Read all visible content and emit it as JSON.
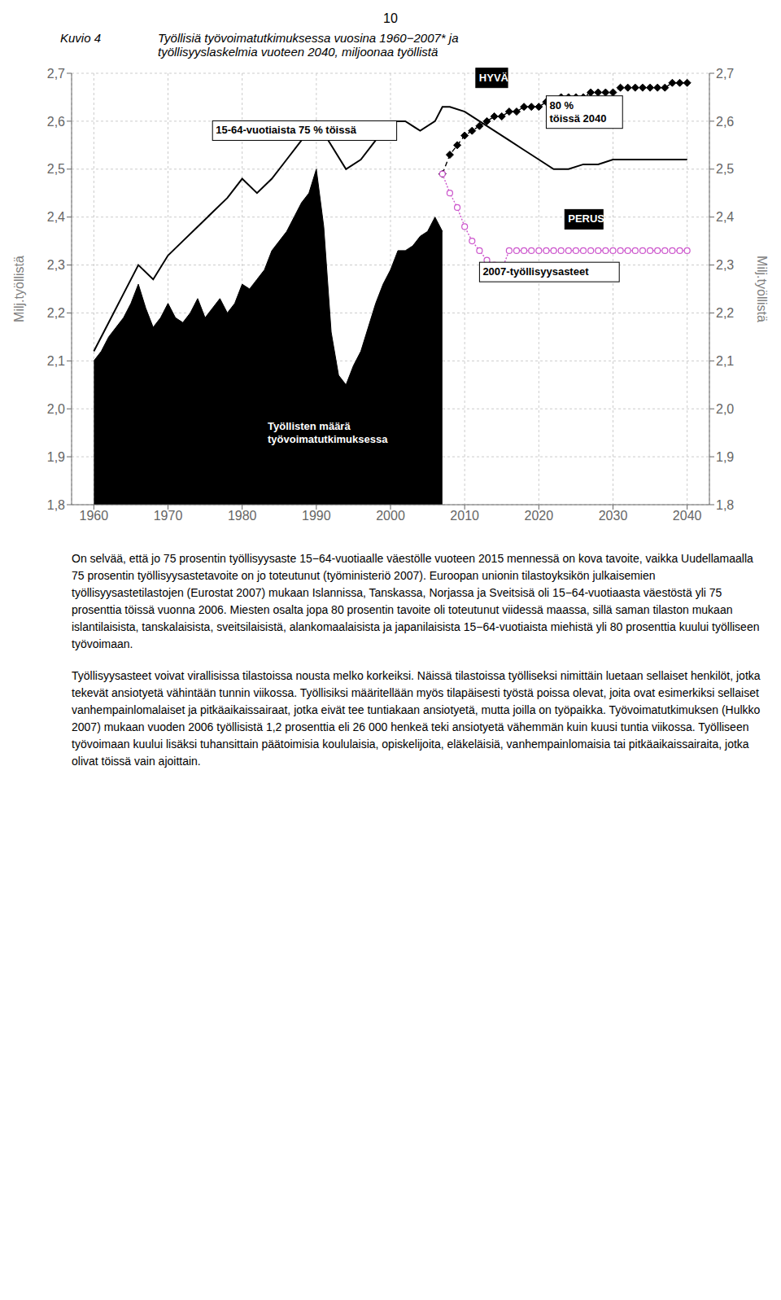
{
  "chart_data": {
    "type": "line",
    "title": "Kuvio 4",
    "subtitle": "Työllisiä työvoimatutkimuksessa vuosina 1960−2007* ja\ntyöllisyyslaskelmia vuoteen 2040, miljoonaa työllistä",
    "ylabel": "Milj.työllistä",
    "y2label": "Milj.työllistä",
    "xlim": [
      1957,
      2043
    ],
    "xticks": [
      1960,
      1970,
      1980,
      1990,
      2000,
      2010,
      2020,
      2030,
      2040
    ],
    "ylim": [
      1.8,
      2.7
    ],
    "yticks": [
      {
        "value": 1.8,
        "label": "1,8"
      },
      {
        "value": 1.9,
        "label": "1,9"
      },
      {
        "value": 2.0,
        "label": "2,0"
      },
      {
        "value": 2.1,
        "label": "2,1"
      },
      {
        "value": 2.2,
        "label": "2,2"
      },
      {
        "value": 2.3,
        "label": "2,3"
      },
      {
        "value": 2.4,
        "label": "2,4"
      },
      {
        "value": 2.5,
        "label": "2,5"
      },
      {
        "value": 2.6,
        "label": "2,6"
      },
      {
        "value": 2.7,
        "label": "2,7"
      }
    ],
    "y2lim": [
      1.8,
      2.7
    ],
    "y2ticks": [
      {
        "value": 1.8,
        "label": "1,8"
      },
      {
        "value": 1.9,
        "label": "1,9"
      },
      {
        "value": 2.0,
        "label": "2,0"
      },
      {
        "value": 2.1,
        "label": "2,1"
      },
      {
        "value": 2.2,
        "label": "2,2"
      },
      {
        "value": 2.3,
        "label": "2,3"
      },
      {
        "value": 2.4,
        "label": "2,4"
      },
      {
        "value": 2.5,
        "label": "2,5"
      },
      {
        "value": 2.6,
        "label": "2,6"
      },
      {
        "value": 2.7,
        "label": "2,7"
      }
    ],
    "grid": true,
    "series": [
      {
        "type": "area",
        "color": "#000000",
        "marker": "none",
        "line_style": "solid",
        "x": [
          1960,
          1961,
          1962,
          1963,
          1964,
          1965,
          1966,
          1967,
          1968,
          1969,
          1970,
          1971,
          1972,
          1973,
          1974,
          1975,
          1976,
          1977,
          1978,
          1979,
          1980,
          1981,
          1982,
          1983,
          1984,
          1985,
          1986,
          1987,
          1988,
          1989,
          1990,
          1991,
          1992,
          1993,
          1994,
          1995,
          1996,
          1997,
          1998,
          1999,
          2000,
          2001,
          2002,
          2003,
          2004,
          2005,
          2006,
          2007
        ],
        "values": [
          2.1,
          2.12,
          2.15,
          2.17,
          2.19,
          2.22,
          2.26,
          2.21,
          2.17,
          2.19,
          2.22,
          2.19,
          2.18,
          2.2,
          2.23,
          2.19,
          2.21,
          2.23,
          2.2,
          2.22,
          2.26,
          2.25,
          2.27,
          2.29,
          2.33,
          2.35,
          2.37,
          2.4,
          2.43,
          2.45,
          2.5,
          2.38,
          2.16,
          2.07,
          2.05,
          2.09,
          2.12,
          2.17,
          2.22,
          2.26,
          2.29,
          2.33,
          2.33,
          2.34,
          2.36,
          2.37,
          2.4,
          2.37
        ]
      },
      {
        "type": "line",
        "color": "#000000",
        "marker": "none",
        "line_style": "solid",
        "x": [
          1960,
          1962,
          1964,
          1966,
          1968,
          1970,
          1972,
          1974,
          1976,
          1978,
          1980,
          1982,
          1984,
          1986,
          1988,
          1990,
          1992,
          1994,
          1996,
          1998,
          2000,
          2002,
          2004,
          2006,
          2007,
          2008,
          2010,
          2012,
          2014,
          2016,
          2018,
          2020,
          2022,
          2024,
          2026,
          2028,
          2030,
          2032,
          2034,
          2036,
          2038,
          2040
        ],
        "values": [
          2.12,
          2.18,
          2.24,
          2.3,
          2.27,
          2.32,
          2.35,
          2.38,
          2.41,
          2.44,
          2.48,
          2.45,
          2.48,
          2.52,
          2.56,
          2.6,
          2.55,
          2.5,
          2.52,
          2.56,
          2.6,
          2.6,
          2.58,
          2.6,
          2.63,
          2.63,
          2.62,
          2.6,
          2.58,
          2.56,
          2.54,
          2.52,
          2.5,
          2.5,
          2.51,
          2.51,
          2.52,
          2.52,
          2.52,
          2.52,
          2.52,
          2.52
        ]
      },
      {
        "type": "line",
        "color": "#000000",
        "marker": "diamond",
        "line_style": "dashed",
        "x": [
          2007,
          2008,
          2009,
          2010,
          2011,
          2012,
          2013,
          2014,
          2015,
          2016,
          2017,
          2018,
          2019,
          2020,
          2021,
          2022,
          2023,
          2024,
          2025,
          2026,
          2027,
          2028,
          2029,
          2030,
          2031,
          2032,
          2033,
          2034,
          2035,
          2036,
          2037,
          2038,
          2039,
          2040
        ],
        "values": [
          2.49,
          2.53,
          2.55,
          2.57,
          2.58,
          2.59,
          2.6,
          2.61,
          2.61,
          2.62,
          2.62,
          2.63,
          2.63,
          2.63,
          2.64,
          2.64,
          2.65,
          2.65,
          2.65,
          2.65,
          2.66,
          2.66,
          2.66,
          2.66,
          2.67,
          2.67,
          2.67,
          2.67,
          2.67,
          2.67,
          2.67,
          2.68,
          2.68,
          2.68
        ]
      },
      {
        "type": "line",
        "color": "#cc55cc",
        "marker": "circle",
        "line_style": "dotted",
        "x": [
          2007,
          2008,
          2009,
          2010,
          2011,
          2012,
          2013,
          2014,
          2015,
          2016,
          2017,
          2018,
          2019,
          2020,
          2021,
          2022,
          2023,
          2024,
          2025,
          2026,
          2027,
          2028,
          2029,
          2030,
          2031,
          2032,
          2033,
          2034,
          2035,
          2036,
          2037,
          2038,
          2039,
          2040
        ],
        "values": [
          2.49,
          2.45,
          2.42,
          2.38,
          2.35,
          2.33,
          2.31,
          2.3,
          2.29,
          2.33,
          2.33,
          2.33,
          2.33,
          2.33,
          2.33,
          2.33,
          2.33,
          2.33,
          2.33,
          2.33,
          2.33,
          2.33,
          2.33,
          2.33,
          2.33,
          2.33,
          2.33,
          2.33,
          2.33,
          2.33,
          2.33,
          2.33,
          2.33,
          2.33
        ]
      }
    ],
    "annotations": [
      {
        "text": "10"
      },
      {
        "text": "15-64-vuotiaista 75 % töissä",
        "x": 1976,
        "y": 2.56
      },
      {
        "text": "Työllisten määrä\ntyövoimatutkimuksessa",
        "x": 1983,
        "y": 1.915,
        "color": "#ffffff"
      },
      {
        "text": "HYVÄ",
        "x": 2011.5,
        "y": 2.67,
        "color": "#ffffff"
      },
      {
        "text": "80 %\ntöissä 2040",
        "x": 2021,
        "y": 2.585
      },
      {
        "text": "PERUS",
        "x": 2023.5,
        "y": 2.375,
        "color": "#ffffff"
      },
      {
        "text": "2007-työllisyysasteet",
        "x": 2012,
        "y": 2.265
      },
      {
        "text": "On selvää, että jo 75 prosentin työllisyysaste 15−64-vuotiaalle väestölle vuoteen 2015 mennessä on kova tavoite, vaikka Uudellamaalla 75 prosentin työllisyysastetavoite on jo toteutunut (työministeriö 2007). Euroopan unionin tilastoyksikön julkaisemien työllisyysastetilastojen (Eurostat 2007) mukaan Islannissa, Tanskassa, Norjassa ja Sveitsisä oli 15−64-vuotiaasta väestöstä yli 75 prosenttia töissä vuonna 2006. Miesten osalta jopa 80 prosentin tavoite oli toteutunut viidessä maassa, sillä saman tilaston mukaan islantilaisista, tanskalaisista, sveitsilaisistä, alankomaalaisista ja japanilaisista 15−64-vuotiaista miehistä yli 80 prosenttia kuului työlliseen työvoimaan."
      },
      {
        "text": "Työllisyysasteet voivat virallisissa tilastoissa nousta melko korkeiksi. Näissä tilastoissa työlliseksi nimittäin luetaan sellaiset henkilöt, jotka tekevät ansiotyetä vähintään tunnin viikossa. Työllisiksi määritellään myös tilapäisesti työstä poissa olevat, joita ovat esimerkiksi sellaiset vanhempainlomalaiset ja pitkäaikaissairaat, jotka eivät tee tuntiakaan ansiotyetä, mutta joilla on työpaikka. Työvoimatutkimuksen (Hulkko 2007) mukaan vuoden 2006 työllisistä 1,2 prosenttia eli 26 000 henkeä teki ansiotyetä vähemmän kuin kuusi tuntia viikossa. Työlliseen työvoimaan kuului lisäksi tuhansittain päätoimisia koululaisia, opiskelijoita, eläkeläisiä, vanhempainlomaisia tai pitkäaikaissairaita, jotka olivat töissä vain ajoittain."
      }
    ]
  }
}
